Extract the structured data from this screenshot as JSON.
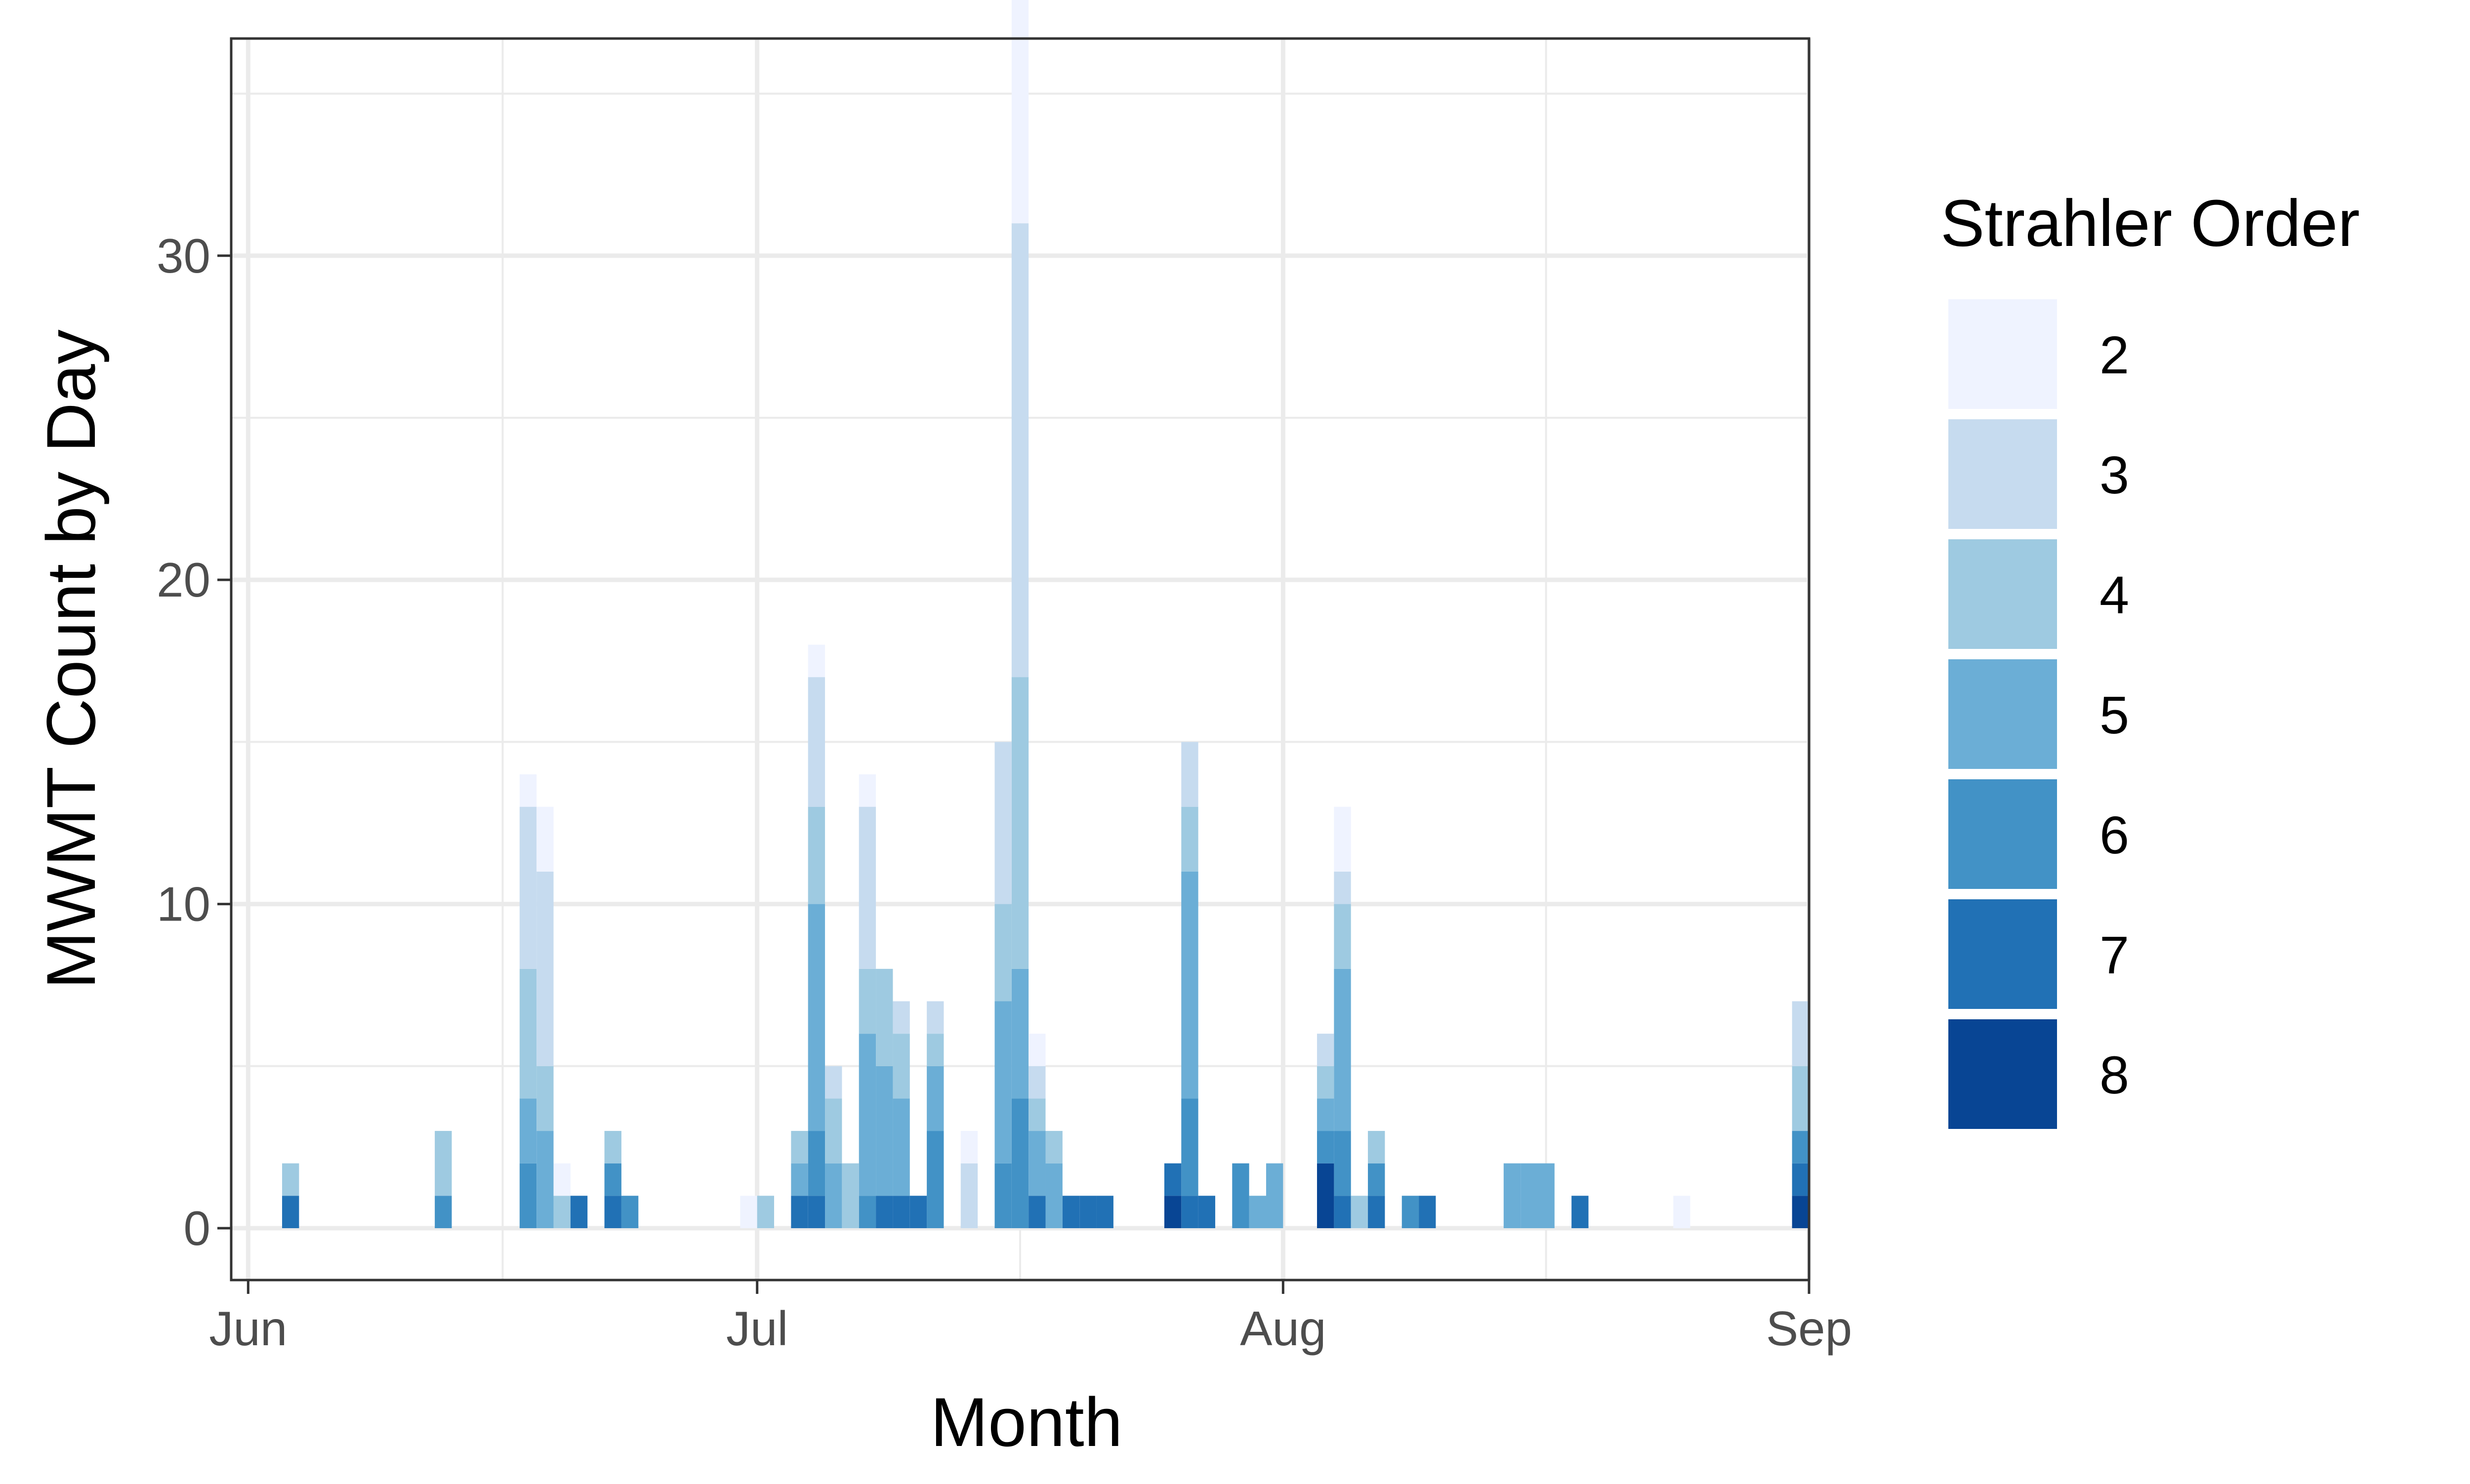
{
  "chart_data": {
    "type": "bar",
    "stacked": true,
    "title": "",
    "xlabel": "Month",
    "ylabel": "MWMT Count by Day",
    "x_axis": {
      "unit": "date",
      "range": [
        "2023-05-31",
        "2023-09-01"
      ],
      "ticks": [
        {
          "date": "2023-06-01",
          "label": "Jun"
        },
        {
          "date": "2023-07-01",
          "label": "Jul"
        },
        {
          "date": "2023-08-01",
          "label": "Aug"
        },
        {
          "date": "2023-09-01",
          "label": "Sep"
        }
      ]
    },
    "ylim": [
      -1.6,
      36.7
    ],
    "y_ticks": [
      0,
      10,
      20,
      30
    ],
    "grid": true,
    "legend": {
      "title": "Strahler Order",
      "placement": "right"
    },
    "colors": {
      "2": "#EFF3FF",
      "3": "#C6DBEF",
      "4": "#9ECAE1",
      "5": "#6BAED6",
      "6": "#4292C6",
      "7": "#2171B5",
      "8": "#084594"
    },
    "series": [
      {
        "name": "2",
        "points": [
          {
            "date": "2023-06-17",
            "value": 1
          },
          {
            "date": "2023-06-18",
            "value": 2
          },
          {
            "date": "2023-06-19",
            "value": 1
          },
          {
            "date": "2023-06-30",
            "value": 1
          },
          {
            "date": "2023-07-04",
            "value": 1
          },
          {
            "date": "2023-07-07",
            "value": 1
          },
          {
            "date": "2023-07-13",
            "value": 1
          },
          {
            "date": "2023-07-16",
            "value": 7
          },
          {
            "date": "2023-07-17",
            "value": 1
          },
          {
            "date": "2023-08-04",
            "value": 2
          },
          {
            "date": "2023-08-24",
            "value": 1
          }
        ]
      },
      {
        "name": "3",
        "points": [
          {
            "date": "2023-06-17",
            "value": 5
          },
          {
            "date": "2023-06-18",
            "value": 6
          },
          {
            "date": "2023-07-04",
            "value": 4
          },
          {
            "date": "2023-07-05",
            "value": 1
          },
          {
            "date": "2023-07-07",
            "value": 5
          },
          {
            "date": "2023-07-09",
            "value": 1
          },
          {
            "date": "2023-07-11",
            "value": 1
          },
          {
            "date": "2023-07-13",
            "value": 2
          },
          {
            "date": "2023-07-15",
            "value": 5
          },
          {
            "date": "2023-07-16",
            "value": 14
          },
          {
            "date": "2023-07-17",
            "value": 1
          },
          {
            "date": "2023-07-26",
            "value": 2
          },
          {
            "date": "2023-08-03",
            "value": 1
          },
          {
            "date": "2023-08-04",
            "value": 1
          },
          {
            "date": "2023-08-31",
            "value": 2
          }
        ]
      },
      {
        "name": "4",
        "points": [
          {
            "date": "2023-06-03",
            "value": 1
          },
          {
            "date": "2023-06-12",
            "value": 2
          },
          {
            "date": "2023-06-17",
            "value": 4
          },
          {
            "date": "2023-06-18",
            "value": 2
          },
          {
            "date": "2023-06-19",
            "value": 1
          },
          {
            "date": "2023-06-22",
            "value": 1
          },
          {
            "date": "2023-07-01",
            "value": 1
          },
          {
            "date": "2023-07-03",
            "value": 1
          },
          {
            "date": "2023-07-04",
            "value": 3
          },
          {
            "date": "2023-07-05",
            "value": 2
          },
          {
            "date": "2023-07-06",
            "value": 2
          },
          {
            "date": "2023-07-07",
            "value": 2
          },
          {
            "date": "2023-07-08",
            "value": 3
          },
          {
            "date": "2023-07-09",
            "value": 2
          },
          {
            "date": "2023-07-11",
            "value": 1
          },
          {
            "date": "2023-07-15",
            "value": 3
          },
          {
            "date": "2023-07-16",
            "value": 9
          },
          {
            "date": "2023-07-17",
            "value": 1
          },
          {
            "date": "2023-07-18",
            "value": 1
          },
          {
            "date": "2023-07-26",
            "value": 2
          },
          {
            "date": "2023-08-03",
            "value": 1
          },
          {
            "date": "2023-08-04",
            "value": 2
          },
          {
            "date": "2023-08-05",
            "value": 1
          },
          {
            "date": "2023-08-06",
            "value": 1
          },
          {
            "date": "2023-08-31",
            "value": 2
          }
        ]
      },
      {
        "name": "5",
        "points": [
          {
            "date": "2023-06-17",
            "value": 2
          },
          {
            "date": "2023-06-18",
            "value": 3
          },
          {
            "date": "2023-07-03",
            "value": 1
          },
          {
            "date": "2023-07-04",
            "value": 7
          },
          {
            "date": "2023-07-05",
            "value": 2
          },
          {
            "date": "2023-07-07",
            "value": 5
          },
          {
            "date": "2023-07-08",
            "value": 4
          },
          {
            "date": "2023-07-09",
            "value": 3
          },
          {
            "date": "2023-07-11",
            "value": 2
          },
          {
            "date": "2023-07-15",
            "value": 5
          },
          {
            "date": "2023-07-16",
            "value": 4
          },
          {
            "date": "2023-07-17",
            "value": 2
          },
          {
            "date": "2023-07-18",
            "value": 2
          },
          {
            "date": "2023-07-26",
            "value": 7
          },
          {
            "date": "2023-07-30",
            "value": 1
          },
          {
            "date": "2023-07-31",
            "value": 2
          },
          {
            "date": "2023-08-03",
            "value": 1
          },
          {
            "date": "2023-08-04",
            "value": 5
          },
          {
            "date": "2023-08-14",
            "value": 2
          },
          {
            "date": "2023-08-15",
            "value": 2
          },
          {
            "date": "2023-08-16",
            "value": 2
          }
        ]
      },
      {
        "name": "6",
        "points": [
          {
            "date": "2023-06-12",
            "value": 1
          },
          {
            "date": "2023-06-17",
            "value": 2
          },
          {
            "date": "2023-06-22",
            "value": 1
          },
          {
            "date": "2023-06-23",
            "value": 1
          },
          {
            "date": "2023-07-04",
            "value": 2
          },
          {
            "date": "2023-07-07",
            "value": 1
          },
          {
            "date": "2023-07-11",
            "value": 3
          },
          {
            "date": "2023-07-15",
            "value": 2
          },
          {
            "date": "2023-07-16",
            "value": 4
          },
          {
            "date": "2023-07-26",
            "value": 3
          },
          {
            "date": "2023-07-29",
            "value": 2
          },
          {
            "date": "2023-08-03",
            "value": 1
          },
          {
            "date": "2023-08-04",
            "value": 2
          },
          {
            "date": "2023-08-06",
            "value": 1
          },
          {
            "date": "2023-08-08",
            "value": 1
          },
          {
            "date": "2023-08-31",
            "value": 1
          }
        ]
      },
      {
        "name": "7",
        "points": [
          {
            "date": "2023-06-03",
            "value": 1
          },
          {
            "date": "2023-06-20",
            "value": 1
          },
          {
            "date": "2023-06-22",
            "value": 1
          },
          {
            "date": "2023-07-03",
            "value": 1
          },
          {
            "date": "2023-07-04",
            "value": 1
          },
          {
            "date": "2023-07-08",
            "value": 1
          },
          {
            "date": "2023-07-09",
            "value": 1
          },
          {
            "date": "2023-07-10",
            "value": 1
          },
          {
            "date": "2023-07-17",
            "value": 1
          },
          {
            "date": "2023-07-19",
            "value": 1
          },
          {
            "date": "2023-07-20",
            "value": 1
          },
          {
            "date": "2023-07-21",
            "value": 1
          },
          {
            "date": "2023-07-25",
            "value": 1
          },
          {
            "date": "2023-07-26",
            "value": 1
          },
          {
            "date": "2023-07-27",
            "value": 1
          },
          {
            "date": "2023-08-04",
            "value": 1
          },
          {
            "date": "2023-08-06",
            "value": 1
          },
          {
            "date": "2023-08-09",
            "value": 1
          },
          {
            "date": "2023-08-18",
            "value": 1
          },
          {
            "date": "2023-08-31",
            "value": 1
          }
        ]
      },
      {
        "name": "8",
        "points": [
          {
            "date": "2023-07-25",
            "value": 1
          },
          {
            "date": "2023-08-03",
            "value": 2
          },
          {
            "date": "2023-08-31",
            "value": 1
          }
        ]
      }
    ]
  }
}
